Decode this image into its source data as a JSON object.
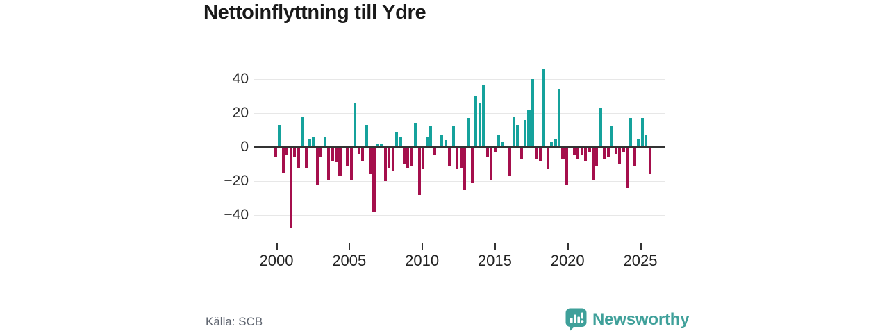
{
  "title": "Nettoinflyttning till Ydre",
  "source": "Källa: SCB",
  "branding": {
    "logo_text": "Newsworthy",
    "logo_color": "#3fa09a"
  },
  "colors": {
    "positive": "#15a29c",
    "negative": "#a50f4c",
    "gridline": "#e7e7e7",
    "zero_line": "#333333",
    "axis_text": "#2b2b2b",
    "source_text": "#5f6570"
  },
  "chart_data": {
    "type": "bar",
    "title": "Nettoinflyttning till Ydre",
    "frequency": "quarterly",
    "start_period": "2000 Q1",
    "xlabel": "",
    "ylabel": "",
    "ylim": [
      -50,
      50
    ],
    "grid": "horizontal",
    "legend": "none",
    "y_tick_labels": [
      "40",
      "20",
      "0",
      "−20",
      "−40"
    ],
    "y_tick_values": [
      40,
      20,
      0,
      -20,
      -40
    ],
    "x_tick_years": [
      "2000",
      "2005",
      "2010",
      "2015",
      "2020",
      "2025"
    ],
    "values": [
      -6,
      13,
      -15,
      -5,
      -47,
      -6,
      -12,
      18,
      -12,
      5,
      6,
      -22,
      -6,
      6,
      -19,
      -8,
      -9,
      -17,
      1,
      -11,
      -19,
      26,
      -4,
      -8,
      13,
      -16,
      -38,
      2,
      2,
      -20,
      -12,
      -14,
      9,
      6,
      -10,
      -12,
      -11,
      14,
      -28,
      -13,
      6,
      12,
      -5,
      1,
      7,
      4,
      -11,
      12,
      -13,
      -12,
      -25,
      17,
      -21,
      30,
      26,
      36,
      -6,
      -19,
      -3,
      7,
      3,
      0,
      -17,
      18,
      13,
      -7,
      16,
      22,
      40,
      -7,
      -8,
      46,
      -13,
      3,
      5,
      34,
      -7,
      -22,
      1,
      -5,
      -7,
      -5,
      -8,
      -3,
      -19,
      -11,
      23,
      -7,
      -6,
      12,
      -4,
      -10,
      -3,
      -24,
      17,
      -11,
      5,
      17,
      7,
      -16
    ]
  }
}
